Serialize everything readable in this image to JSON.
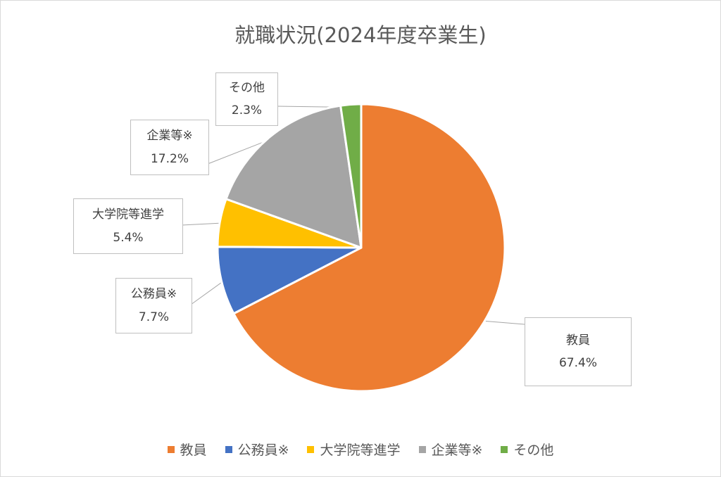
{
  "chart_data": {
    "type": "pie",
    "title": "就職状況(2024年度卒業生)",
    "categories": [
      "教員",
      "公務員※",
      "大学院等進学",
      "企業等※",
      "その他"
    ],
    "values": [
      67.4,
      7.7,
      5.4,
      17.2,
      2.3
    ],
    "value_labels": [
      "67.4%",
      "7.7%",
      "5.4%",
      "17.2%",
      "2.3%"
    ],
    "colors": [
      "#ED7D31",
      "#4472C4",
      "#FFC000",
      "#A5A5A5",
      "#70AD47"
    ],
    "start_angle": "12 o'clock, clockwise",
    "legend_position": "bottom",
    "data_labels": "callouts with category name and percent"
  }
}
